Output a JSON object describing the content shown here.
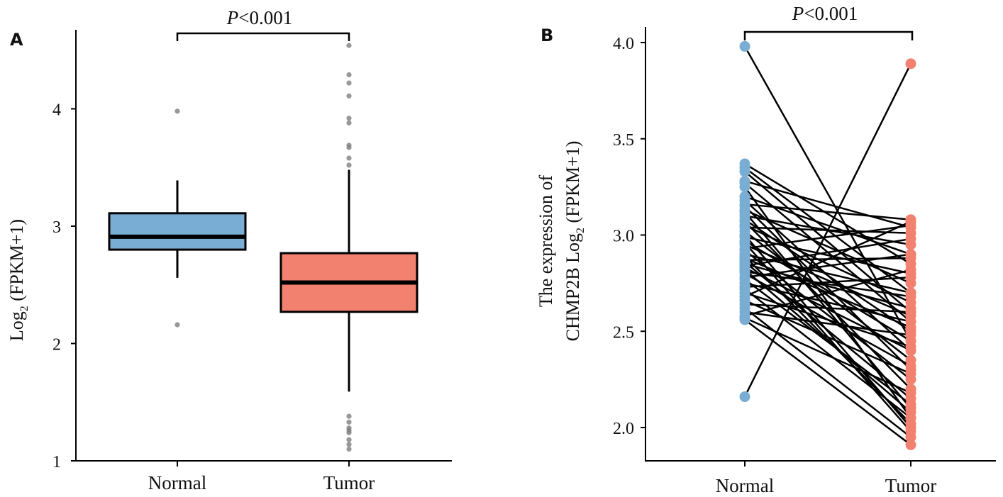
{
  "chart_data": [
    {
      "panel": "A",
      "type": "box",
      "categories": [
        "Normal",
        "Tumor"
      ],
      "ylabel": "Log2 (FPKM+1)",
      "ylabel_parts": {
        "main": "Log",
        "sub": "2",
        "rest": " (FPKM+1)"
      },
      "ylim": [
        1,
        4.7
      ],
      "yticks": [
        1,
        2,
        3,
        4
      ],
      "significance": "P<0.001",
      "significance_parts": {
        "italic": "P",
        "rest": "<0.001"
      },
      "boxes": [
        {
          "name": "Normal",
          "whisker_low": 2.56,
          "q1": 2.8,
          "median": 2.91,
          "q3": 3.11,
          "whisker_high": 3.39,
          "outliers": [
            2.16,
            3.98
          ],
          "color": "#7aadd3"
        },
        {
          "name": "Tumor",
          "whisker_low": 1.59,
          "q1": 2.27,
          "median": 2.52,
          "q3": 2.77,
          "whisker_high": 3.48,
          "outliers": [
            1.1,
            1.14,
            1.18,
            1.24,
            1.26,
            1.28,
            1.33,
            1.38,
            3.52,
            3.58,
            3.67,
            3.69,
            3.88,
            3.92,
            4.11,
            4.22,
            4.29,
            4.54
          ],
          "color": "#f2826f"
        }
      ]
    },
    {
      "panel": "B",
      "type": "paired-line",
      "categories": [
        "Normal",
        "Tumor"
      ],
      "ylabel_line1": "The expression of",
      "ylabel_line2": "CHMP2B Log2 (FPKM+1)",
      "ylabel_line2_parts": {
        "main": "CHMP2B Log",
        "sub": "2",
        "rest": " (FPKM+1)"
      },
      "ylim": [
        1.9,
        4.05
      ],
      "yticks": [
        2.0,
        2.5,
        3.0,
        3.5,
        4.0
      ],
      "ytick_labels": [
        "2.0",
        "2.5",
        "3.0",
        "3.5",
        "4.0"
      ],
      "significance": "P<0.001",
      "significance_parts": {
        "italic": "P",
        "rest": "<0.001"
      },
      "colors": {
        "Normal": "#7aadd3",
        "Tumor": "#f2826f",
        "line": "#000000"
      },
      "pairs": [
        [
          3.98,
          2.45
        ],
        [
          2.16,
          3.89
        ],
        [
          3.37,
          2.85
        ],
        [
          3.35,
          2.7
        ],
        [
          3.33,
          2.6
        ],
        [
          3.28,
          3.04
        ],
        [
          3.27,
          2.55
        ],
        [
          3.25,
          2.05
        ],
        [
          3.2,
          2.9
        ],
        [
          3.18,
          2.4
        ],
        [
          3.16,
          3.08
        ],
        [
          3.15,
          2.3
        ],
        [
          3.13,
          2.75
        ],
        [
          3.12,
          2.1
        ],
        [
          3.1,
          2.95
        ],
        [
          3.08,
          2.5
        ],
        [
          3.07,
          2.2
        ],
        [
          3.05,
          2.65
        ],
        [
          3.04,
          3.01
        ],
        [
          3.02,
          2.35
        ],
        [
          3.0,
          2.0
        ],
        [
          2.99,
          2.8
        ],
        [
          2.97,
          2.45
        ],
        [
          2.96,
          1.98
        ],
        [
          2.95,
          2.58
        ],
        [
          2.93,
          3.05
        ],
        [
          2.92,
          2.25
        ],
        [
          2.9,
          2.7
        ],
        [
          2.89,
          2.02
        ],
        [
          2.88,
          2.52
        ],
        [
          2.87,
          2.88
        ],
        [
          2.86,
          2.15
        ],
        [
          2.85,
          2.62
        ],
        [
          2.84,
          2.98
        ],
        [
          2.83,
          2.4
        ],
        [
          2.82,
          2.08
        ],
        [
          2.81,
          2.68
        ],
        [
          2.8,
          2.32
        ],
        [
          2.78,
          2.9
        ],
        [
          2.77,
          2.12
        ],
        [
          2.75,
          2.55
        ],
        [
          2.73,
          2.78
        ],
        [
          2.72,
          2.05
        ],
        [
          2.7,
          2.42
        ],
        [
          2.68,
          3.07
        ],
        [
          2.66,
          2.28
        ],
        [
          2.64,
          2.6
        ],
        [
          2.62,
          1.95
        ],
        [
          2.6,
          2.48
        ],
        [
          2.58,
          2.82
        ],
        [
          2.57,
          2.18
        ],
        [
          2.56,
          1.91
        ]
      ]
    }
  ]
}
